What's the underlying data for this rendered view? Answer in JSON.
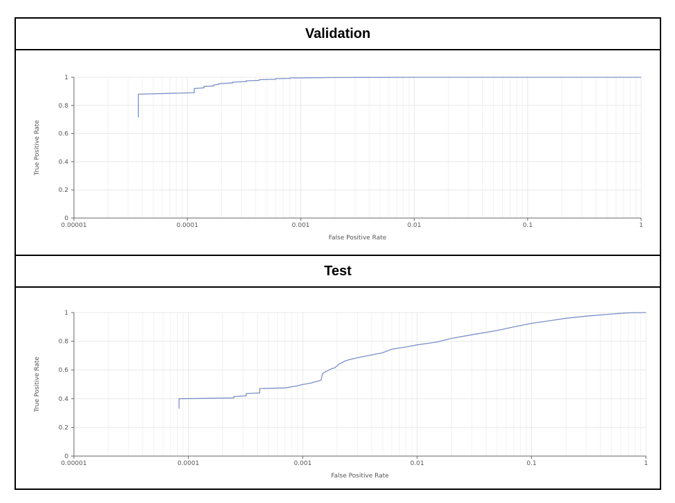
{
  "colors": {
    "curve": "#7a8fc8",
    "grid": "#e8e8e8",
    "axis": "#666666"
  },
  "chart_data": [
    {
      "type": "line",
      "title": "Validation",
      "xlabel": "False Positive Rate",
      "ylabel": "True Positive Rate",
      "xscale": "log",
      "xlim": [
        1e-05,
        1
      ],
      "ylim": [
        0,
        1
      ],
      "xticks": [
        "0.00001",
        "0.0001",
        "0.001",
        "0.01",
        "0.1",
        "1"
      ],
      "yticks": [
        "0",
        "0.2",
        "0.4",
        "0.6",
        "0.8",
        "1"
      ],
      "grid": true,
      "series": [
        {
          "x": [
            3.7e-05,
            3.7e-05,
            0.000115,
            0.000115,
            0.00014,
            0.00014,
            0.00017,
            0.00017,
            0.00019,
            0.00019,
            0.00025,
            0.00025,
            0.00033,
            0.00033,
            0.00043,
            0.00043,
            0.0006,
            0.0006,
            0.0008,
            0.0008,
            0.00103,
            0.0015,
            0.002,
            0.003,
            0.005,
            0.01,
            0.05,
            0.1,
            0.5,
            1
          ],
          "y": [
            0.715,
            0.88,
            0.89,
            0.92,
            0.925,
            0.935,
            0.938,
            0.945,
            0.95,
            0.955,
            0.96,
            0.965,
            0.97,
            0.975,
            0.978,
            0.983,
            0.986,
            0.99,
            0.992,
            0.995,
            0.996,
            0.997,
            0.998,
            0.999,
            0.999,
            1,
            1,
            1,
            1,
            1
          ]
        }
      ]
    },
    {
      "type": "line",
      "title": "Test",
      "xlabel": "False Positive Rate",
      "ylabel": "True Positive Rate",
      "xscale": "log",
      "xlim": [
        1e-05,
        1
      ],
      "ylim": [
        0,
        1
      ],
      "xticks": [
        "0.00001",
        "0.0001",
        "0.001",
        "0.01",
        "0.1",
        "1"
      ],
      "yticks": [
        "0",
        "0.2",
        "0.4",
        "0.6",
        "0.8",
        "1"
      ],
      "grid": true,
      "series": [
        {
          "x": [
            8.3e-05,
            8.3e-05,
            0.00025,
            0.00025,
            0.00032,
            0.00032,
            0.00042,
            0.00042,
            0.0007,
            0.0009,
            0.00095,
            0.0012,
            0.00125,
            0.0014,
            0.00145,
            0.00148,
            0.00152,
            0.0016,
            0.0017,
            0.0018,
            0.0019,
            0.002,
            0.0021,
            0.0022,
            0.0023,
            0.0025,
            0.003,
            0.004,
            0.005,
            0.006,
            0.008,
            0.01,
            0.015,
            0.02,
            0.03,
            0.05,
            0.07,
            0.1,
            0.15,
            0.2,
            0.3,
            0.5,
            0.7,
            1
          ],
          "y": [
            0.33,
            0.4,
            0.405,
            0.415,
            0.42,
            0.435,
            0.44,
            0.47,
            0.475,
            0.49,
            0.495,
            0.51,
            0.515,
            0.525,
            0.53,
            0.57,
            0.58,
            0.59,
            0.6,
            0.61,
            0.615,
            0.63,
            0.645,
            0.65,
            0.66,
            0.67,
            0.685,
            0.705,
            0.72,
            0.745,
            0.76,
            0.775,
            0.795,
            0.82,
            0.845,
            0.875,
            0.9,
            0.925,
            0.945,
            0.96,
            0.975,
            0.99,
            0.998,
            1
          ]
        }
      ]
    }
  ]
}
